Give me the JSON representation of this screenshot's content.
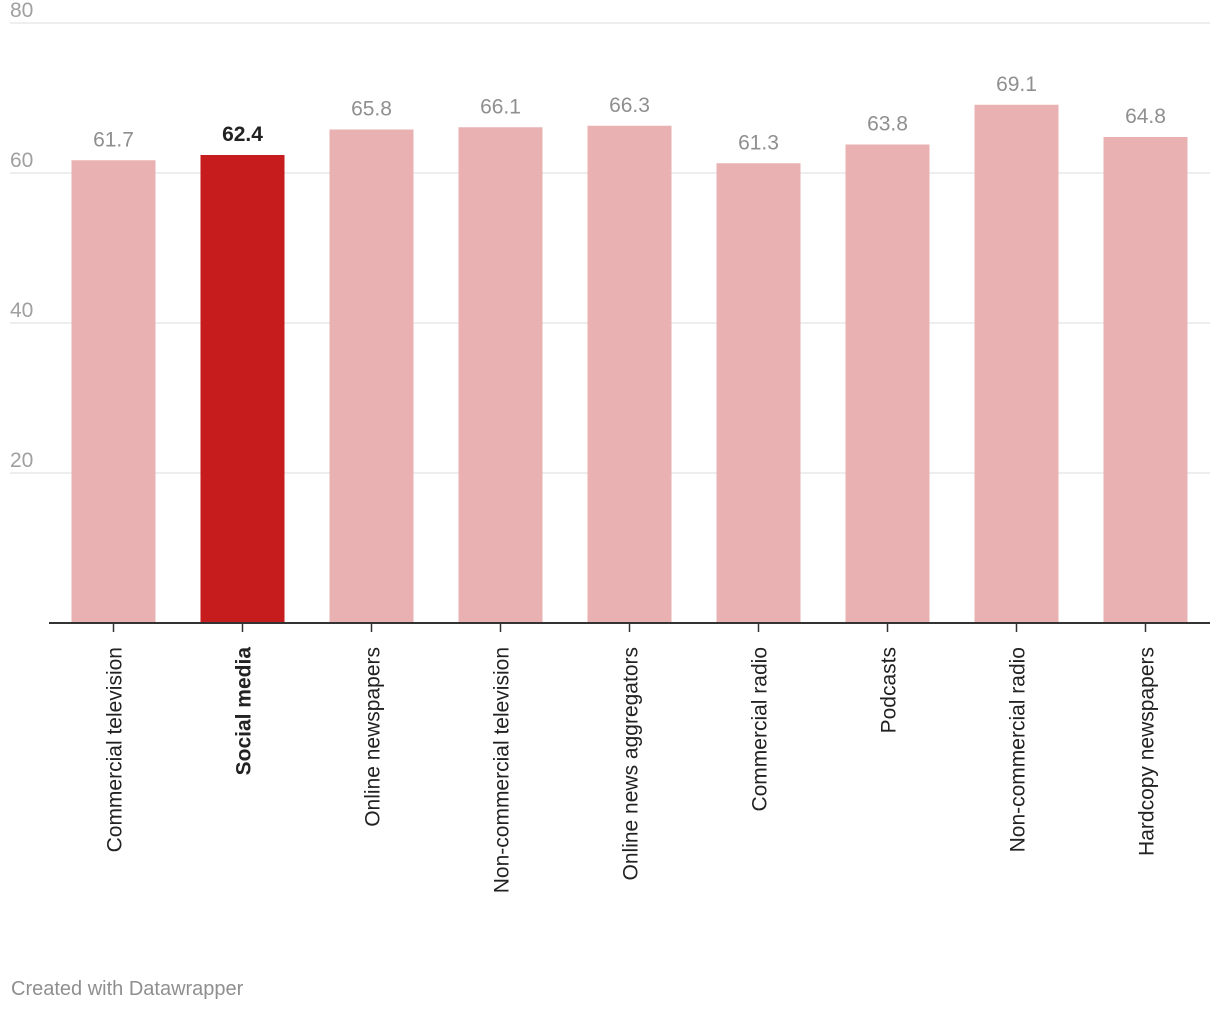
{
  "chart_data": {
    "type": "bar",
    "title": "",
    "xlabel": "",
    "ylabel": "",
    "ylim": [
      0,
      80
    ],
    "yticks": [
      20,
      40,
      60,
      80
    ],
    "grid": true,
    "categories": [
      "Commercial television",
      "Social media",
      "Online newspapers",
      "Non-commercial television",
      "Online news aggregators",
      "Commercial radio",
      "Podcasts",
      "Non-commercial radio",
      "Hardcopy newspapers"
    ],
    "values": [
      61.7,
      62.4,
      65.8,
      66.1,
      66.3,
      61.3,
      63.8,
      69.1,
      64.8
    ],
    "value_labels": [
      "61.7",
      "62.4",
      "65.8",
      "66.1",
      "66.3",
      "61.3",
      "63.8",
      "69.1",
      "64.8"
    ],
    "highlight_index": 1,
    "colors": {
      "bar": "#e9b1b1",
      "highlight": "#c71c1e",
      "grid": "#e3e3e3",
      "axis": "#333333",
      "tick_label": "#a0a0a0",
      "value_label": "#8f8f8f",
      "value_label_highlight": "#222222",
      "category_label": "#222222"
    }
  },
  "footer": {
    "credit": "Created with Datawrapper"
  }
}
